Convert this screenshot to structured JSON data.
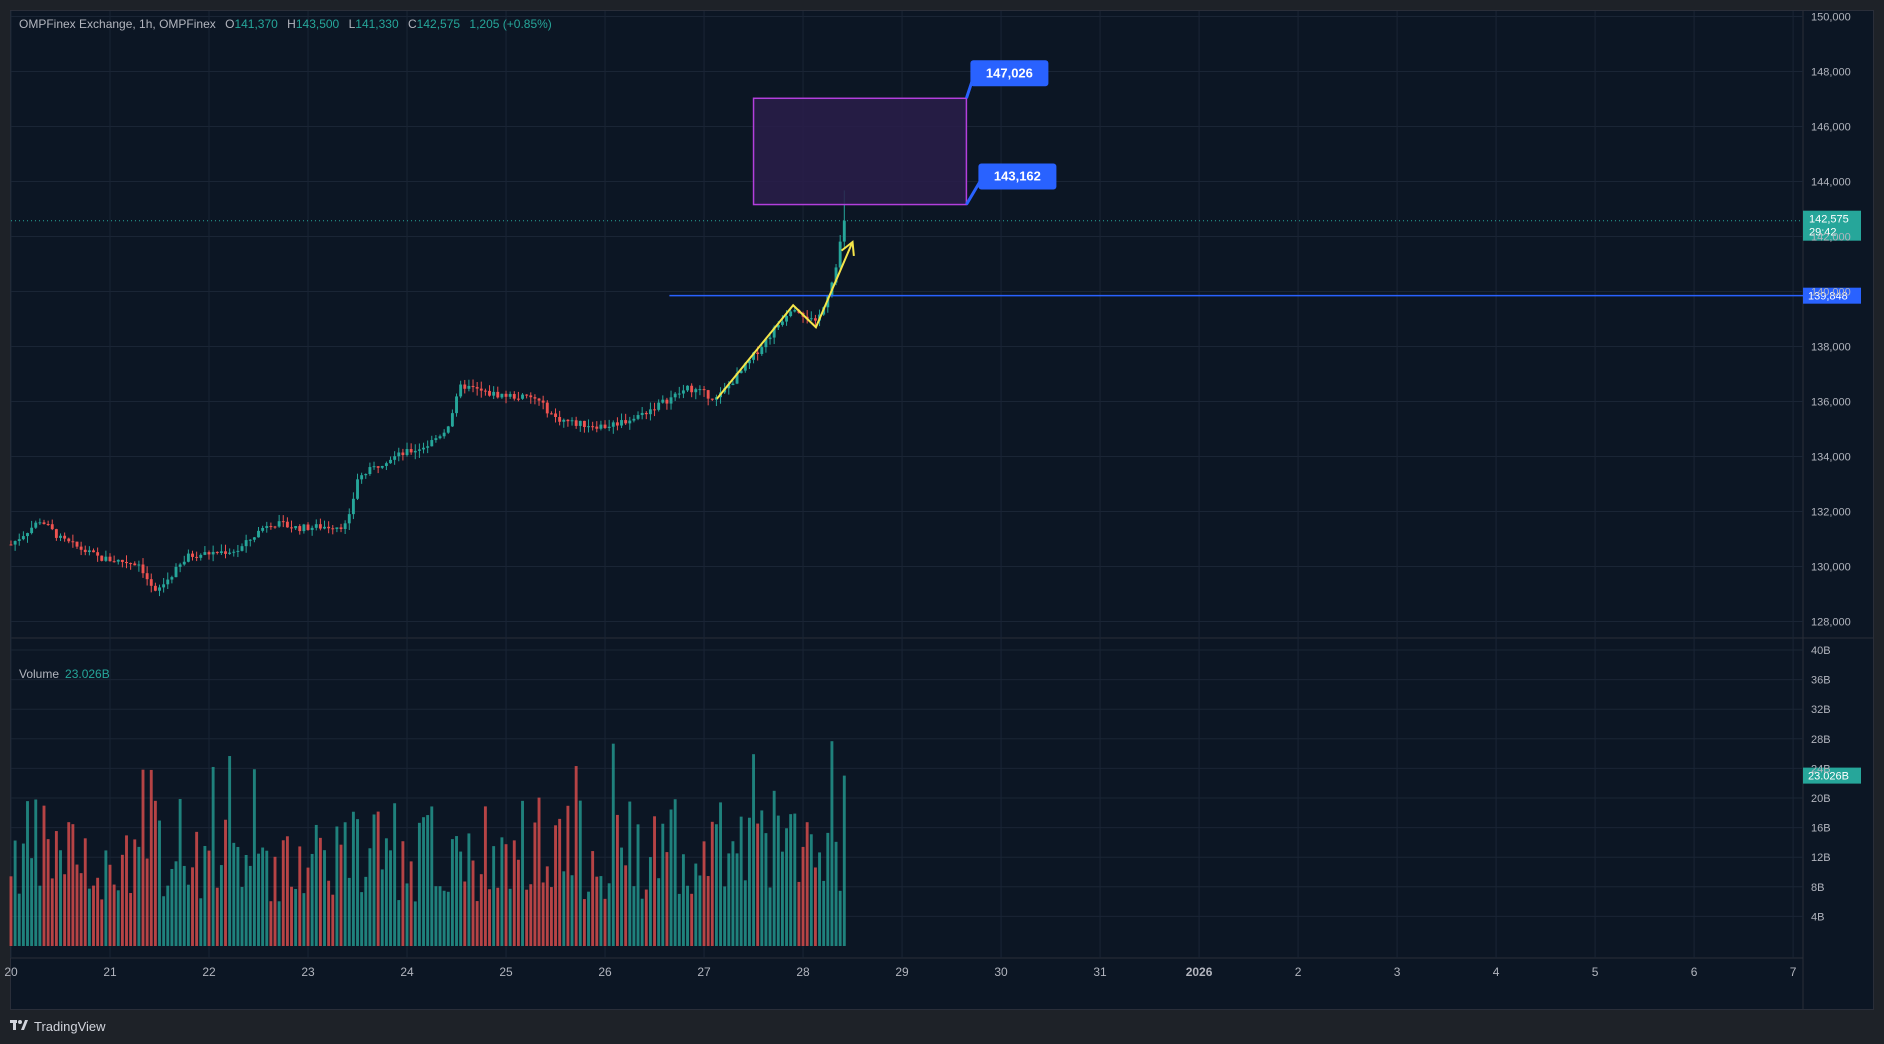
{
  "header": {
    "symbol": "OMPFinex Exchange, 1h, OMPFinex",
    "open_label": "O",
    "open": "141,370",
    "high_label": "H",
    "high": "143,500",
    "low_label": "L",
    "low": "141,330",
    "close_label": "C",
    "close": "142,575",
    "change": "1,205 (+0.85%)"
  },
  "volume_header": {
    "label": "Volume",
    "value": "23.026B"
  },
  "footer": {
    "brand": "TradingView",
    "logo_icon": "tradingview-logo-icon"
  },
  "colors": {
    "background": "#0c1624",
    "up": "#26a69a",
    "down": "#ef5350",
    "grid": "#1a2535",
    "axis_text": "#b2b5be",
    "horizontal_line": "#2962ff",
    "zone_border": "#b33fdd",
    "zone_fill": "#2a1d4a",
    "path": "#f5e54a",
    "label_bg": "#2962ff"
  },
  "chart_data": {
    "type": "candlestick",
    "price_axis": {
      "ticks": [
        "150,000",
        "148,000",
        "146,000",
        "144,000",
        "142,000",
        "140,000",
        "138,000",
        "136,000",
        "134,000",
        "132,000",
        "130,000",
        "128,000"
      ],
      "range": [
        127400,
        150200
      ]
    },
    "volume_axis": {
      "ticks": [
        "40B",
        "36B",
        "32B",
        "28B",
        "24B",
        "20B",
        "16B",
        "12B",
        "8B",
        "4B"
      ],
      "range": [
        0,
        40
      ]
    },
    "x_axis": {
      "ticks": [
        "20",
        "21",
        "22",
        "23",
        "24",
        "25",
        "26",
        "27",
        "28",
        "29",
        "30",
        "31",
        "2026",
        "2",
        "3",
        "4",
        "5",
        "6",
        "7"
      ],
      "range_days": [
        20,
        38.1
      ]
    },
    "last_price": {
      "value": 142575,
      "label": "142,575",
      "countdown": "29:42"
    },
    "horizontal_line": {
      "value": 139848,
      "label": "139,848",
      "from_day": 26.65
    },
    "target_zone": {
      "top": 147026,
      "bottom": 143162,
      "from_day": 27.5,
      "to_day": 29.65,
      "top_label": "147,026",
      "bottom_label": "143,162"
    },
    "volume_last": {
      "value": 23.026,
      "label": "23.026B"
    },
    "path_annotation": [
      [
        27.13,
        136100
      ],
      [
        27.9,
        139500
      ],
      [
        28.13,
        138700
      ],
      [
        28.5,
        141800
      ]
    ],
    "anchors": [
      [
        20,
        130800
      ],
      [
        20.3,
        131700
      ],
      [
        20.5,
        131000
      ],
      [
        20.9,
        130300
      ],
      [
        21.3,
        130100
      ],
      [
        21.45,
        129000
      ],
      [
        21.8,
        130400
      ],
      [
        22.3,
        130600
      ],
      [
        22.6,
        131600
      ],
      [
        22.9,
        131400
      ],
      [
        23.4,
        131500
      ],
      [
        23.5,
        133200
      ],
      [
        23.8,
        133900
      ],
      [
        24.2,
        134400
      ],
      [
        24.4,
        135000
      ],
      [
        24.55,
        136600
      ],
      [
        24.8,
        136300
      ],
      [
        25.3,
        136100
      ],
      [
        25.5,
        135400
      ],
      [
        25.7,
        135200
      ],
      [
        26.0,
        135100
      ],
      [
        26.3,
        135400
      ],
      [
        26.6,
        136000
      ],
      [
        26.85,
        136500
      ],
      [
        27.13,
        136100
      ],
      [
        27.4,
        137200
      ],
      [
        27.9,
        139500
      ],
      [
        28.13,
        138800
      ],
      [
        28.3,
        140400
      ],
      [
        28.42,
        142575
      ]
    ]
  }
}
